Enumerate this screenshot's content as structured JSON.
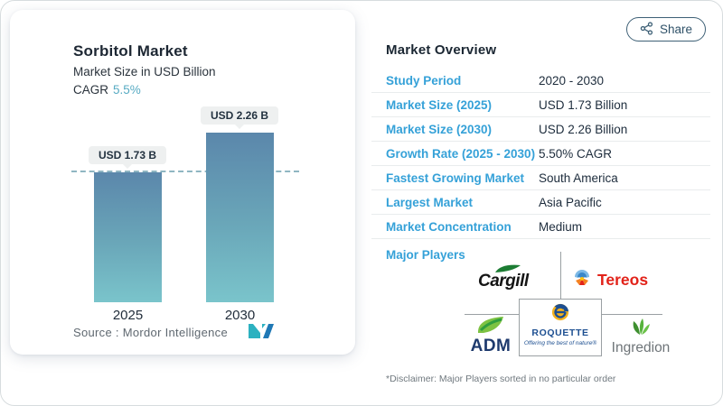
{
  "left_panel": {
    "title": "Sorbitol Market",
    "subtitle": "Market Size in USD Billion",
    "cagr_label": "CAGR",
    "cagr_value": "5.5%",
    "source_text": "Source :  Mordor Intelligence"
  },
  "chart_data": {
    "type": "bar",
    "categories": [
      "2025",
      "2030"
    ],
    "values": [
      1.73,
      2.26
    ],
    "bar_labels": [
      "USD 1.73 B",
      "USD 2.26 B"
    ],
    "title": "Sorbitol Market",
    "xlabel": "",
    "ylabel": "Market Size in USD Billion",
    "ylim": [
      0,
      2.6
    ],
    "grid": false,
    "annotations": [
      "dashed horizontal reference line at 1.73"
    ],
    "bar_gradient_top": "#5b87ab",
    "bar_gradient_bottom": "#7ac4cb"
  },
  "header": {
    "share_label": "Share"
  },
  "overview": {
    "title": "Market Overview",
    "rows": [
      {
        "label": "Study Period",
        "value": "2020 - 2030"
      },
      {
        "label": "Market Size (2025)",
        "value": "USD 1.73 Billion"
      },
      {
        "label": "Market Size (2030)",
        "value": "USD 2.26 Billion"
      },
      {
        "label": "Growth Rate (2025 - 2030)",
        "value": "5.50% CAGR"
      },
      {
        "label": "Fastest Growing Market",
        "value": "South America"
      },
      {
        "label": "Largest Market",
        "value": "Asia Pacific"
      },
      {
        "label": "Market Concentration",
        "value": "Medium"
      }
    ],
    "major_players_label": "Major Players",
    "players": {
      "cargill": "Cargill",
      "tereos": "Tereos",
      "adm": "ADM",
      "roquette": "ROQUETTE",
      "roquette_tagline": "Offering the best of nature®",
      "ingredion": "Ingredion"
    },
    "disclaimer": "*Disclaimer: Major Players sorted in no particular order"
  },
  "colors": {
    "label_blue": "#35a1d8",
    "value_navy": "#1d2c3c",
    "cagr_teal": "#58abc3",
    "bar_top": "#5b87ab",
    "bar_bottom": "#7ac4cb",
    "share_border": "#3e6076",
    "tereos_red": "#e2231a",
    "adm_navy": "#1e3a6d",
    "roquette_blue": "#1d4f91",
    "cargill_green": "#1c7c33",
    "ingredion_green": "#4ea536",
    "mordor_teal": "#2cb1c0",
    "mordor_blue": "#1f78b5"
  }
}
